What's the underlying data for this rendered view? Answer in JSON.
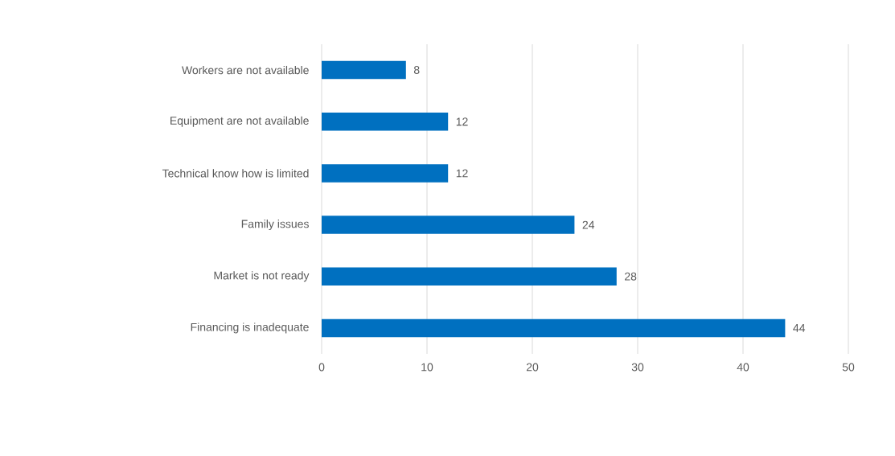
{
  "chart_data": {
    "type": "bar",
    "orientation": "horizontal",
    "categories": [
      "Workers are not available",
      "Equipment are not available",
      "Technical know how is limited",
      "Family issues",
      "Market is not ready",
      "Financing is inadequate"
    ],
    "values": [
      8,
      12,
      12,
      24,
      28,
      44
    ],
    "color": "#0070c0",
    "xlim": [
      0,
      50
    ],
    "xticks": [
      0,
      10,
      20,
      30,
      40,
      50
    ],
    "grid": "x",
    "data_labels": true
  }
}
